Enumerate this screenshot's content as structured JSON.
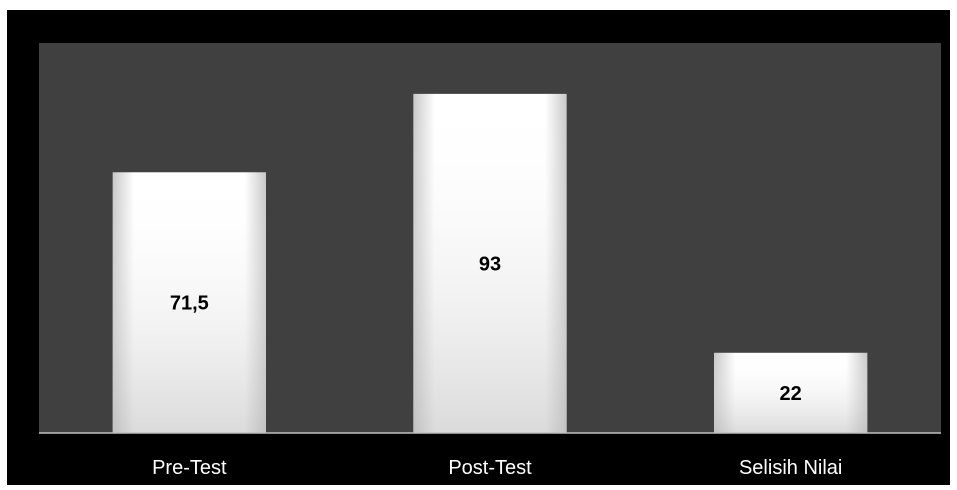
{
  "chart_data": {
    "type": "bar",
    "categories": [
      "Pre-Test",
      "Post-Test",
      "Selisih Nilai"
    ],
    "values": [
      71.5,
      93,
      22
    ],
    "data_labels": [
      "71,5",
      "93",
      "22"
    ],
    "title": "",
    "xlabel": "",
    "ylabel": "",
    "ylim": [
      0,
      100
    ],
    "grid": false,
    "legend": "none",
    "colors": {
      "frame_background": "#000000",
      "plot_background": "#404040",
      "bar_fill_light": "#ffffff",
      "bar_fill_shade": "#c8c8c8",
      "axis_line": "#bfbfbf",
      "tick_label": "#ffffff",
      "data_label": "#000000"
    }
  }
}
